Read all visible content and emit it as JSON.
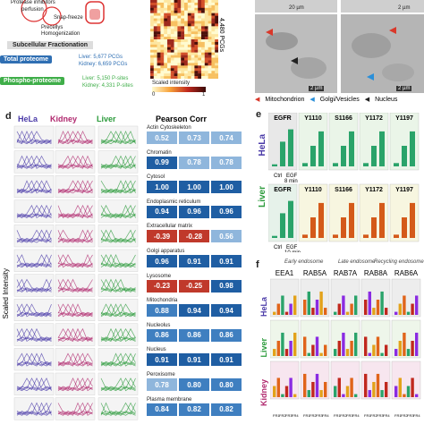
{
  "top_left": {
    "lines": [
      "Protease inhibitors",
      "perfusion",
      "Snap-freeze",
      "Precellys",
      "Homogenization"
    ],
    "fractionation": "Subcellular Fractionation",
    "total_proteome": {
      "label": "Total proteome",
      "lines": [
        "Liver: 5,677 PCGs",
        "Kidney: 6,659 PCGs"
      ]
    },
    "phospho_proteome": {
      "label": "Phospho-proteome",
      "lines": [
        "Liver: 5,150 P-sites",
        "Kidney: 4,331 P-sites"
      ]
    },
    "colors": {
      "total": "#2f6fb3",
      "phospho": "#3fae49"
    }
  },
  "heatmap": {
    "side_label": "4,480 PCGs",
    "scale_label": "Scaled intensity",
    "scale_min": "0",
    "scale_max": "1"
  },
  "em": {
    "scale_bars": [
      "20 µm",
      "2 µm",
      "2 µm",
      "2 µm"
    ],
    "legend": [
      "Mitochondrion",
      "Golgi/Vesicles",
      "Nucleus"
    ],
    "legend_colors": [
      "#d9382a",
      "#2a8fd9",
      "#222222"
    ]
  },
  "panel_d": {
    "letter": "d",
    "headers": [
      "HeLa",
      "Kidney",
      "Liver",
      "Pearson Corr"
    ],
    "header_colors": [
      "#4a3aa8",
      "#b0286e",
      "#2a9a3a"
    ],
    "y_label": "Scaled Intensity",
    "rows": [
      {
        "name": "Actin Cytoskeleton",
        "values": [
          "0.52",
          "0.73",
          "0.74"
        ]
      },
      {
        "name": "Chromatin",
        "values": [
          "0.99",
          "0.78",
          "0.78"
        ]
      },
      {
        "name": "Cytosol",
        "values": [
          "1.00",
          "1.00",
          "1.00"
        ]
      },
      {
        "name": "Endoplasmic reticulum",
        "values": [
          "0.94",
          "0.96",
          "0.96"
        ]
      },
      {
        "name": "Extracellular matrix",
        "values": [
          "-0.39",
          "-0.28",
          "0.56"
        ]
      },
      {
        "name": "Golgi apparatus",
        "values": [
          "0.96",
          "0.91",
          "0.91"
        ]
      },
      {
        "name": "Lysosome",
        "values": [
          "-0.23",
          "-0.25",
          "0.98"
        ]
      },
      {
        "name": "Mitochondria",
        "values": [
          "0.88",
          "0.94",
          "0.94"
        ]
      },
      {
        "name": "Nucleolus",
        "values": [
          "0.86",
          "0.86",
          "0.86"
        ]
      },
      {
        "name": "Nucleus",
        "values": [
          "0.91",
          "0.91",
          "0.91"
        ]
      },
      {
        "name": "Peroxisome",
        "values": [
          "0.78",
          "0.80",
          "0.80"
        ]
      },
      {
        "name": "Plasma membrane",
        "values": [
          "0.84",
          "0.82",
          "0.82"
        ]
      }
    ]
  },
  "panel_e": {
    "letter": "e",
    "hela": {
      "label": "HeLa",
      "items": [
        "EGFR",
        "Y1110",
        "S1166",
        "Y1172",
        "Y1197"
      ],
      "x": [
        "Ctrl",
        "EGF\n8 min"
      ]
    },
    "liver": {
      "label": "Liver",
      "items": [
        "EGFR",
        "Y1110",
        "S1166",
        "Y1172",
        "Y1197"
      ],
      "x": [
        "Ctrl",
        "EGF\n10 min"
      ]
    }
  },
  "panel_f": {
    "letter": "f",
    "groups": [
      "Early endosome",
      "Late endosome",
      "Recycling endosome"
    ],
    "proteins": [
      "EEA1",
      "RAB5A",
      "RAB7A",
      "RAB8A",
      "RAB6A"
    ],
    "rows": [
      "HeLa",
      "Liver",
      "Kidney"
    ],
    "row_colors": [
      "#4a3aa8",
      "#2a9a3a",
      "#b0286e"
    ],
    "x_ticks": [
      "FR1",
      "FR2",
      "FR3",
      "FR4"
    ]
  }
}
